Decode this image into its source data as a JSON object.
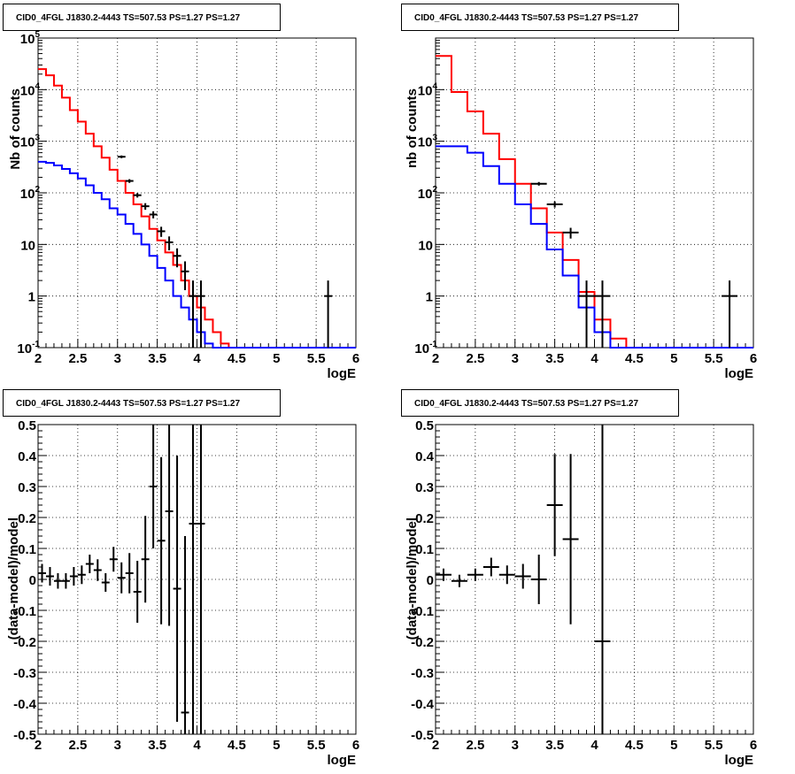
{
  "chart_data": [
    {
      "type": "line",
      "title": "CID0_4FGL J1830.2-4443 TS=507.53 PS=1.27 PS=1.27",
      "xlabel": "logE",
      "ylabel": "Nb of counts",
      "xscale": "linear",
      "yscale": "log",
      "xlim": [
        2,
        6
      ],
      "ylim": [
        0.1,
        100000
      ],
      "grid": true,
      "xticks": [
        "2",
        "2.5",
        "3",
        "3.5",
        "4",
        "4.5",
        "5",
        "5.5",
        "6"
      ],
      "yticks": [
        {
          "label": "10",
          "sup": "-1"
        },
        {
          "label": "1",
          "sup": ""
        },
        {
          "label": "10",
          "sup": ""
        },
        {
          "label": "10",
          "sup": "2"
        },
        {
          "label": "10",
          "sup": "3"
        },
        {
          "label": "10",
          "sup": "4"
        },
        {
          "label": "10",
          "sup": "5"
        }
      ],
      "series": [
        {
          "color": "#ff0000",
          "drawstyle": "steps",
          "bins": [
            2.0,
            2.1,
            2.2,
            2.3,
            2.4,
            2.5,
            2.6,
            2.7,
            2.8,
            2.9,
            3.0,
            3.1,
            3.2,
            3.3,
            3.4,
            3.5,
            3.6,
            3.7,
            3.8,
            3.9,
            4.0,
            4.1,
            4.2,
            4.3,
            4.4,
            4.5,
            5.0,
            5.5,
            6.0
          ],
          "values": [
            25000,
            19000,
            12000,
            7000,
            4000,
            2400,
            1400,
            800,
            480,
            280,
            170,
            100,
            60,
            35,
            20,
            12,
            7,
            4,
            2,
            1,
            0.6,
            0.35,
            0.2,
            0.12,
            0.1,
            0.1,
            0.1,
            0.1
          ]
        },
        {
          "color": "#0000ff",
          "drawstyle": "steps",
          "bins": [
            2.0,
            2.1,
            2.2,
            2.3,
            2.4,
            2.5,
            2.6,
            2.7,
            2.8,
            2.9,
            3.0,
            3.1,
            3.2,
            3.3,
            3.4,
            3.5,
            3.6,
            3.7,
            3.8,
            3.9,
            4.0,
            4.1,
            4.2,
            4.3,
            4.4,
            4.5,
            5.0,
            5.5,
            6.0
          ],
          "values": [
            400,
            380,
            340,
            290,
            240,
            190,
            140,
            100,
            75,
            50,
            38,
            25,
            16,
            10,
            6,
            3.5,
            2,
            1,
            0.6,
            0.35,
            0.2,
            0.12,
            0.1,
            0.1,
            0.1,
            0.1,
            0.1,
            0.1
          ]
        }
      ],
      "points": {
        "color": "#000000",
        "x": [
          3.05,
          3.15,
          3.25,
          3.35,
          3.45,
          3.55,
          3.65,
          3.75,
          3.85,
          3.95,
          4.05,
          5.65
        ],
        "y": [
          500,
          170,
          90,
          55,
          38,
          18,
          11,
          6,
          3,
          1,
          1,
          1
        ],
        "yerr_low": [
          30,
          14,
          9,
          8,
          6,
          4,
          3.3,
          2.4,
          1.7,
          1,
          1,
          1
        ],
        "yerr_high": [
          30,
          14,
          9,
          8,
          6,
          4,
          3.3,
          2.4,
          1.7,
          1,
          1,
          1
        ],
        "xerr": 0.05
      }
    },
    {
      "type": "line",
      "title": "CID0_4FGL J1830.2-4443 TS=507.53 PS=1.27 PS=1.27",
      "xlabel": "logE",
      "ylabel": "nb of counts",
      "xscale": "linear",
      "yscale": "log",
      "xlim": [
        2,
        6
      ],
      "ylim": [
        0.1,
        100000
      ],
      "grid": true,
      "xticks": [
        "2",
        "2.5",
        "3",
        "3.5",
        "4",
        "4.5",
        "5",
        "5.5",
        "6"
      ],
      "yticks": [
        {
          "label": "10",
          "sup": "-1"
        },
        {
          "label": "1",
          "sup": ""
        },
        {
          "label": "10",
          "sup": ""
        },
        {
          "label": "10",
          "sup": "2"
        },
        {
          "label": "10",
          "sup": "3"
        },
        {
          "label": "10",
          "sup": "4"
        }
      ],
      "series": [
        {
          "color": "#ff0000",
          "drawstyle": "steps",
          "bins": [
            2.0,
            2.2,
            2.4,
            2.6,
            2.8,
            3.0,
            3.2,
            3.4,
            3.6,
            3.8,
            4.0,
            4.2,
            4.4,
            4.6,
            5.0,
            5.5,
            6.0
          ],
          "values": [
            45000,
            9000,
            3800,
            1400,
            450,
            150,
            50,
            17,
            5,
            1.2,
            0.35,
            0.15,
            0.1,
            0.1,
            0.1,
            0.1
          ]
        },
        {
          "color": "#0000ff",
          "drawstyle": "steps",
          "bins": [
            2.0,
            2.2,
            2.4,
            2.6,
            2.8,
            3.0,
            3.2,
            3.4,
            3.6,
            3.8,
            4.0,
            4.2,
            4.4,
            4.6,
            5.0,
            5.5,
            6.0
          ],
          "values": [
            800,
            800,
            600,
            330,
            150,
            60,
            25,
            8,
            2.5,
            0.6,
            0.2,
            0.1,
            0.1,
            0.1,
            0.1,
            0.1
          ]
        }
      ],
      "points": {
        "color": "#000000",
        "x": [
          3.3,
          3.5,
          3.7,
          3.9,
          4.1,
          5.7
        ],
        "y": [
          150,
          60,
          17,
          1,
          1,
          1
        ],
        "yerr_low": [
          12,
          8,
          4,
          1,
          1,
          1
        ],
        "yerr_high": [
          12,
          8,
          4,
          1,
          1,
          1
        ],
        "xerr": 0.1
      }
    },
    {
      "type": "scatter",
      "title": "CID0_4FGL J1830.2-4443 TS=507.53 PS=1.27 PS=1.27",
      "xlabel": "logE",
      "ylabel": "(data-model)/model",
      "xscale": "linear",
      "yscale": "linear",
      "xlim": [
        2,
        6
      ],
      "ylim": [
        -0.5,
        0.5
      ],
      "grid": true,
      "xticks": [
        "2",
        "2.5",
        "3",
        "3.5",
        "4",
        "4.5",
        "5",
        "5.5",
        "6"
      ],
      "yticks": [
        "-0.5",
        "-0.4",
        "-0.3",
        "-0.2",
        "-0.1",
        "0",
        "0.1",
        "0.2",
        "0.3",
        "0.4",
        "0.5"
      ],
      "points": {
        "color": "#000000",
        "x": [
          2.05,
          2.15,
          2.25,
          2.35,
          2.45,
          2.55,
          2.65,
          2.75,
          2.85,
          2.95,
          3.05,
          3.15,
          3.25,
          3.35,
          3.45,
          3.55,
          3.65,
          3.75,
          3.85,
          3.95,
          4.05
        ],
        "y": [
          0.02,
          0.01,
          -0.005,
          -0.005,
          0.01,
          0.015,
          0.05,
          0.03,
          -0.01,
          0.065,
          0.005,
          0.02,
          -0.04,
          0.065,
          0.3,
          0.125,
          0.22,
          -0.03,
          -0.43,
          0.18,
          0.18
        ],
        "yerr": [
          0.03,
          0.03,
          0.025,
          0.025,
          0.03,
          0.03,
          0.03,
          0.035,
          0.03,
          0.04,
          0.05,
          0.065,
          0.1,
          0.14,
          0.2,
          0.27,
          0.37,
          0.43,
          0.57,
          1.0,
          1.0
        ],
        "xerr": 0.05
      }
    },
    {
      "type": "scatter",
      "title": "CID0_4FGL J1830.2-4443 TS=507.53 PS=1.27 PS=1.27",
      "xlabel": "logE",
      "ylabel": "(data-model)/model",
      "xscale": "linear",
      "yscale": "linear",
      "xlim": [
        2,
        6
      ],
      "ylim": [
        -0.5,
        0.5
      ],
      "grid": true,
      "xticks": [
        "2",
        "2.5",
        "3",
        "3.5",
        "4",
        "4.5",
        "5",
        "5.5",
        "6"
      ],
      "yticks": [
        "-0.5",
        "-0.4",
        "-0.3",
        "-0.2",
        "-0.1",
        "0",
        "0.1",
        "0.2",
        "0.3",
        "0.4",
        "0.5"
      ],
      "points": {
        "color": "#000000",
        "x": [
          2.1,
          2.3,
          2.5,
          2.7,
          2.9,
          3.1,
          3.3,
          3.5,
          3.7,
          4.1
        ],
        "y": [
          0.015,
          -0.005,
          0.015,
          0.04,
          0.015,
          0.01,
          0.0,
          0.24,
          0.13,
          -0.2
        ],
        "yerr": [
          0.02,
          0.02,
          0.02,
          0.03,
          0.03,
          0.04,
          0.08,
          0.165,
          0.275,
          1.0
        ],
        "xerr": 0.1
      }
    }
  ]
}
